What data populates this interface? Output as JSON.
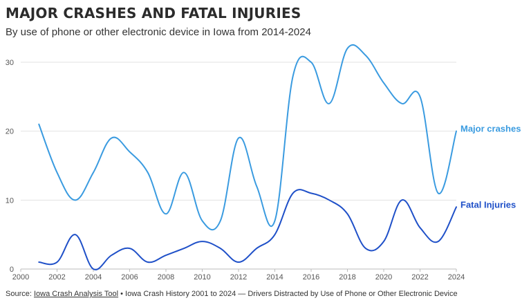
{
  "header": {
    "title": "MAJOR CRASHES AND FATAL INJURIES",
    "subtitle": "By use of phone or other electronic device in Iowa from 2014-2024"
  },
  "footer": {
    "source_prefix": "Source:",
    "source_link": "Iowa Crash Analysis Tool",
    "source_rest": "• Iowa Crash History 2001 to 2024 — Drivers Distracted by Use of Phone or Other Electronic Device"
  },
  "colors": {
    "major_crashes": "#3a9be0",
    "fatal_injuries": "#1f50c8",
    "grid": "#e2e2e2",
    "axis": "#bbbbbb"
  },
  "chart_data": {
    "type": "line",
    "title": "MAJOR CRASHES AND FATAL INJURIES",
    "subtitle": "By use of phone or other electronic device in Iowa from 2014-2024",
    "xlim": [
      2000,
      2024
    ],
    "ylim": [
      0,
      32
    ],
    "x_ticks": [
      2000,
      2002,
      2004,
      2006,
      2008,
      2010,
      2012,
      2014,
      2016,
      2018,
      2020,
      2022,
      2024
    ],
    "y_ticks": [
      0,
      10,
      20,
      30
    ],
    "grid": "horizontal",
    "x": [
      2001,
      2002,
      2003,
      2004,
      2005,
      2006,
      2007,
      2008,
      2009,
      2010,
      2011,
      2012,
      2013,
      2014,
      2015,
      2016,
      2017,
      2018,
      2019,
      2020,
      2021,
      2022,
      2023,
      2024
    ],
    "series": [
      {
        "name": "Major crashes",
        "values": [
          21,
          14,
          10,
          14,
          19,
          17,
          14,
          8,
          14,
          7,
          7,
          19,
          12,
          7,
          28,
          30,
          24,
          32,
          31,
          27,
          24,
          25,
          11,
          20
        ]
      },
      {
        "name": "Fatal Injuries",
        "values": [
          1,
          1,
          5,
          0,
          2,
          3,
          1,
          2,
          3,
          4,
          3,
          1,
          3,
          5,
          11,
          11,
          10,
          8,
          3,
          4,
          10,
          6,
          4,
          9
        ]
      }
    ]
  }
}
